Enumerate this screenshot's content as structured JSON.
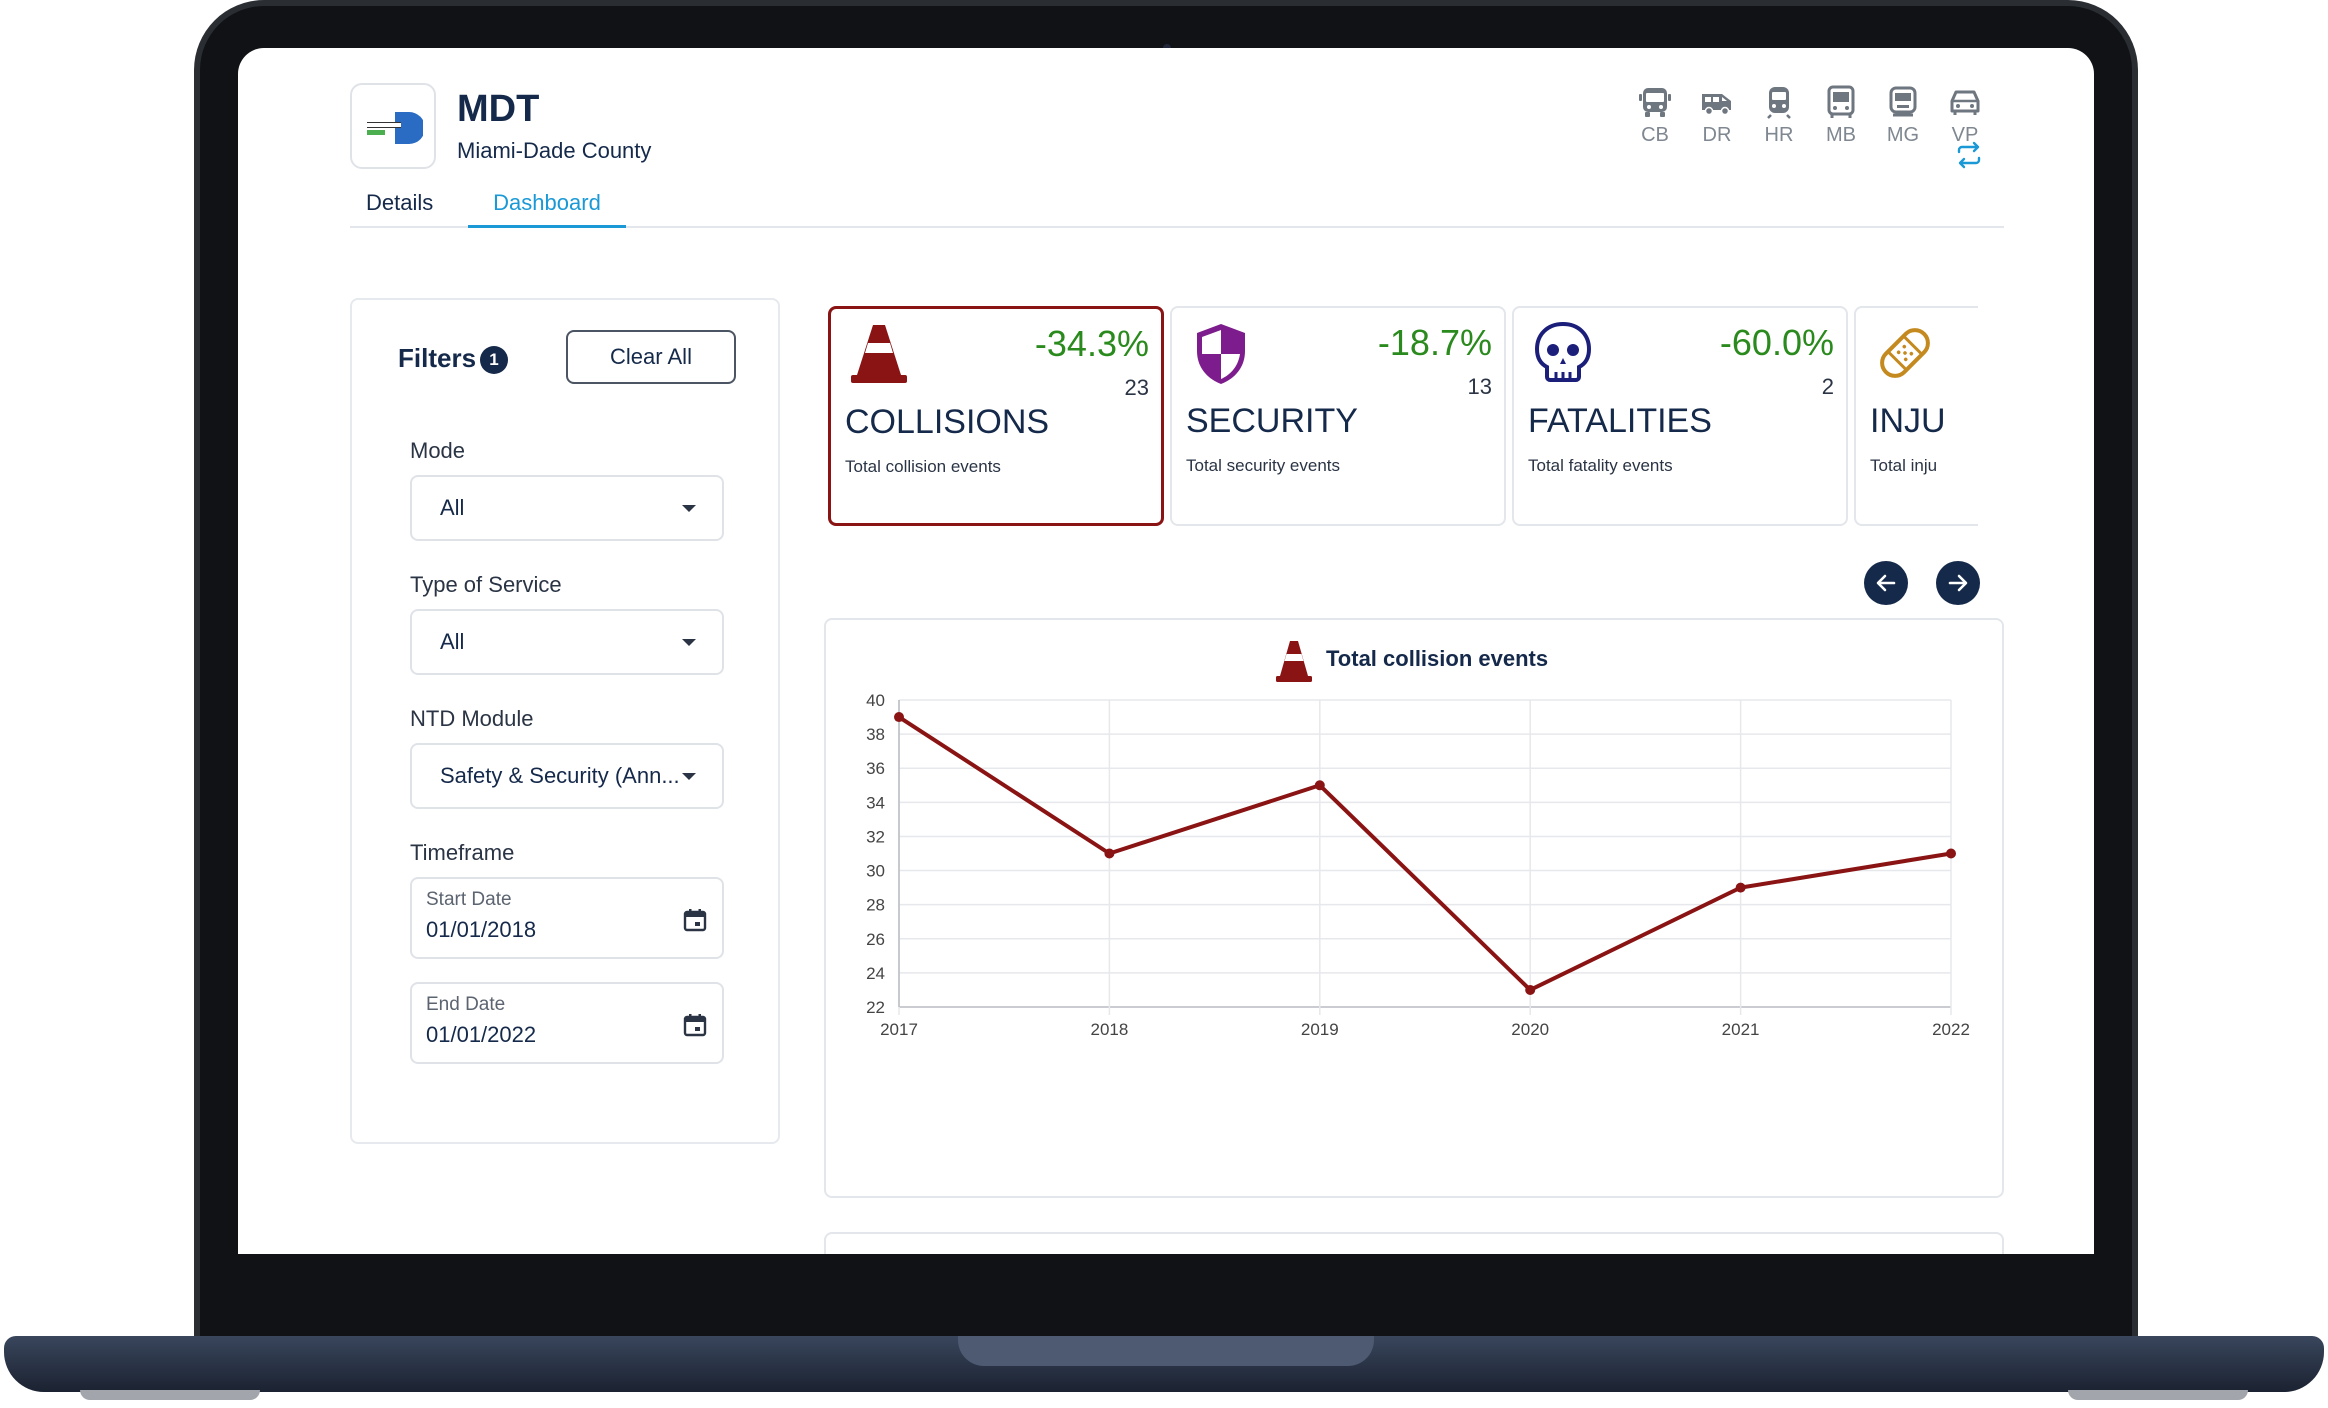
{
  "header": {
    "agency_name": "MDT",
    "agency_sub": "Miami-Dade County"
  },
  "modes": [
    {
      "label": "CB",
      "icon": "bus-icon"
    },
    {
      "label": "DR",
      "icon": "van-icon"
    },
    {
      "label": "HR",
      "icon": "train-icon"
    },
    {
      "label": "MB",
      "icon": "bus-front-icon"
    },
    {
      "label": "MG",
      "icon": "monorail-icon"
    },
    {
      "label": "VP",
      "icon": "car-icon"
    }
  ],
  "tabs": [
    {
      "label": "Details",
      "active": false
    },
    {
      "label": "Dashboard",
      "active": true
    }
  ],
  "filters": {
    "title": "Filters",
    "badge_count": "1",
    "clear_label": "Clear All",
    "mode_label": "Mode",
    "mode_value": "All",
    "service_label": "Type of Service",
    "service_value": "All",
    "module_label": "NTD Module",
    "module_value": "Safety & Security (Ann...",
    "timeframe_label": "Timeframe",
    "start_label": "Start Date",
    "start_value": "01/01/2018",
    "end_label": "End Date",
    "end_value": "01/01/2022"
  },
  "cards": [
    {
      "title": "COLLISIONS",
      "pct": "-34.3%",
      "count": "23",
      "sub": "Total collision events",
      "icon": "traffic-cone-icon",
      "active": true
    },
    {
      "title": "SECURITY",
      "pct": "-18.7%",
      "count": "13",
      "sub": "Total security events",
      "icon": "shield-icon",
      "active": false
    },
    {
      "title": "FATALITIES",
      "pct": "-60.0%",
      "count": "2",
      "sub": "Total fatality events",
      "icon": "skull-icon",
      "active": false
    },
    {
      "title": "INJU",
      "pct": "",
      "count": "",
      "sub": "Total inju",
      "icon": "bandage-icon",
      "active": false
    }
  ],
  "colors": {
    "accent": "#1a99d6",
    "navy": "#15294a",
    "positive": "#2a8a1d",
    "line": "#8a1414"
  },
  "chart_data": {
    "type": "line",
    "title": "Total collision events",
    "x": [
      "2017",
      "2018",
      "2019",
      "2020",
      "2021",
      "2022"
    ],
    "series": [
      {
        "values": [
          39,
          31,
          35,
          23,
          29,
          31
        ]
      }
    ],
    "ylim": [
      22,
      40
    ],
    "yticks": [
      22,
      24,
      26,
      28,
      30,
      32,
      34,
      36,
      38,
      40
    ],
    "grid": true,
    "legend": "none"
  }
}
